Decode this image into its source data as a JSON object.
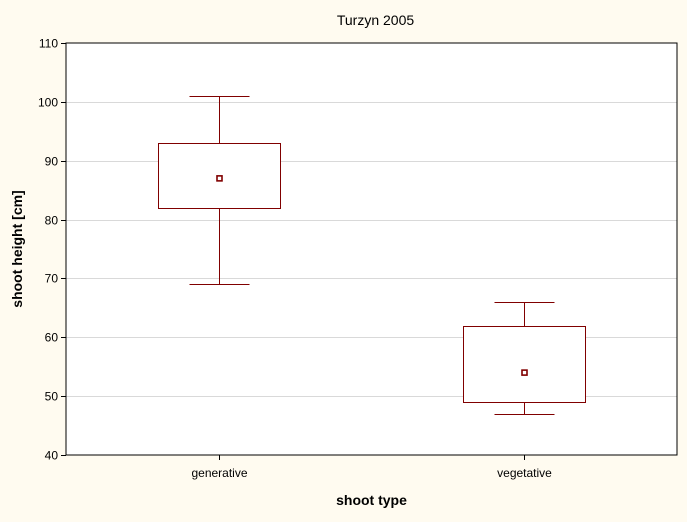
{
  "chart_data": {
    "type": "boxplot",
    "title": "Turzyn 2005",
    "xlabel": "shoot type",
    "ylabel": "shoot height [cm]",
    "ylim": [
      40,
      110
    ],
    "yticks": [
      40,
      50,
      60,
      70,
      80,
      90,
      100,
      110
    ],
    "grid": "horizontal",
    "categories": [
      "generative",
      "vegetative"
    ],
    "boxes": [
      {
        "category": "generative",
        "whisker_low": 69,
        "q1": 82,
        "center": 87,
        "q3": 93,
        "whisker_high": 101
      },
      {
        "category": "vegetative",
        "whisker_low": 47,
        "q1": 49,
        "center": 54,
        "q3": 62,
        "whisker_high": 66
      }
    ],
    "colors": {
      "background": "#fffbf0",
      "plot_area": "#ffffff",
      "box_stroke": "#800000",
      "whisker": "#800000",
      "gridline": "#d9d9d9",
      "axis": "#000000",
      "text": "#000000"
    }
  }
}
